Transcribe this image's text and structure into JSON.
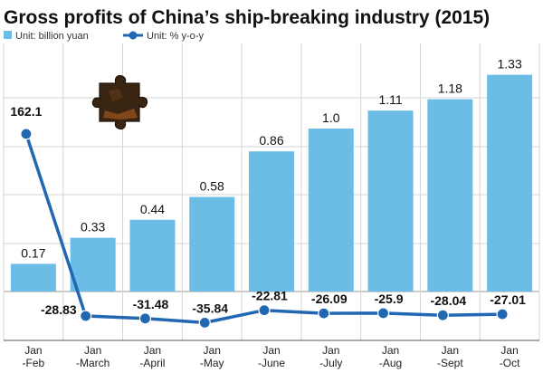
{
  "chart_data": {
    "type": "bar",
    "title": "Gross profits of China’s ship-breaking industry (2015)",
    "categories": [
      [
        "Jan",
        "-Feb"
      ],
      [
        "Jan",
        "-March"
      ],
      [
        "Jan",
        "-April"
      ],
      [
        "Jan",
        "-May"
      ],
      [
        "Jan",
        "-June"
      ],
      [
        "Jan",
        "-July"
      ],
      [
        "Jan",
        "-Aug"
      ],
      [
        "Jan",
        "-Sept"
      ],
      [
        "Jan",
        "-Oct"
      ]
    ],
    "series": [
      {
        "name": "Unit: billion yuan",
        "type": "bar",
        "color": "#6cbde6",
        "values": [
          0.17,
          0.33,
          0.44,
          0.58,
          0.86,
          1.0,
          1.11,
          1.18,
          1.33
        ],
        "labels": [
          "0.17",
          "0.33",
          "0.44",
          "0.58",
          "0.86",
          "1.0",
          "1.11",
          "1.18",
          "1.33"
        ]
      },
      {
        "name": "Unit: % y-o-y",
        "type": "line",
        "color": "#2267b1",
        "values": [
          162.1,
          -28.83,
          -31.48,
          -35.84,
          -22.81,
          -26.09,
          -25.9,
          -28.04,
          -27.01
        ],
        "labels": [
          "162.1",
          "-28.83",
          "-31.48",
          "-35.84",
          "-22.81",
          "-26.09",
          "-25.9",
          "-28.04",
          "-27.01"
        ]
      }
    ],
    "legend_position": "top-left",
    "grid": true
  }
}
